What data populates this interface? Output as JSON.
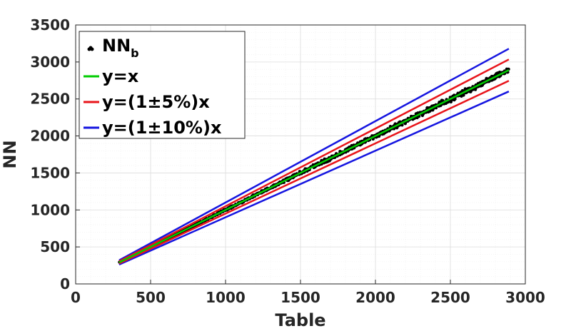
{
  "chart_data": {
    "type": "scatter",
    "title": "",
    "xlabel": "Table",
    "ylabel": "NN",
    "xlim": [
      0,
      3000
    ],
    "ylim": [
      0,
      3500
    ],
    "xticks": [
      0,
      500,
      1000,
      1500,
      2000,
      2500,
      3000
    ],
    "yticks": [
      0,
      500,
      1000,
      1500,
      2000,
      2500,
      3000,
      3500
    ],
    "xtick_labels": [
      "0",
      "500",
      "1000",
      "1500",
      "2000",
      "2500",
      "3000"
    ],
    "ytick_labels": [
      "0",
      "500",
      "1000",
      "1500",
      "2000",
      "2500",
      "3000",
      "3500"
    ],
    "grid": true,
    "legend_position": "top-left",
    "scatter": {
      "name_main": "NN",
      "name_sub": "b",
      "color": "#000000",
      "x_range": [
        290,
        2890
      ],
      "relative_spread": 0.02
    },
    "series": [
      {
        "name": "y=x",
        "x": [
          290,
          2890
        ],
        "y": [
          290,
          2890
        ],
        "color": "#00cc00"
      },
      {
        "name": "y=(1±5%)x",
        "x": [
          290,
          2890
        ],
        "y": [
          304.5,
          3034.5
        ],
        "color": "#e8141a"
      },
      {
        "name": "y=(1±5%)x",
        "x": [
          290,
          2890
        ],
        "y": [
          275.5,
          2745.5
        ],
        "color": "#e8141a"
      },
      {
        "name": "y=(1±10%)x",
        "x": [
          290,
          2890
        ],
        "y": [
          319,
          3179
        ],
        "color": "#1515e0"
      },
      {
        "name": "y=(1±10%)x",
        "x": [
          290,
          2890
        ],
        "y": [
          261,
          2601
        ],
        "color": "#1515e0"
      }
    ],
    "legend": [
      {
        "label": "y=x",
        "color": "#00cc00"
      },
      {
        "label": "y=(1±5%)x",
        "color": "#e8141a"
      },
      {
        "label": "y=(1±10%)x",
        "color": "#1515e0"
      }
    ]
  }
}
